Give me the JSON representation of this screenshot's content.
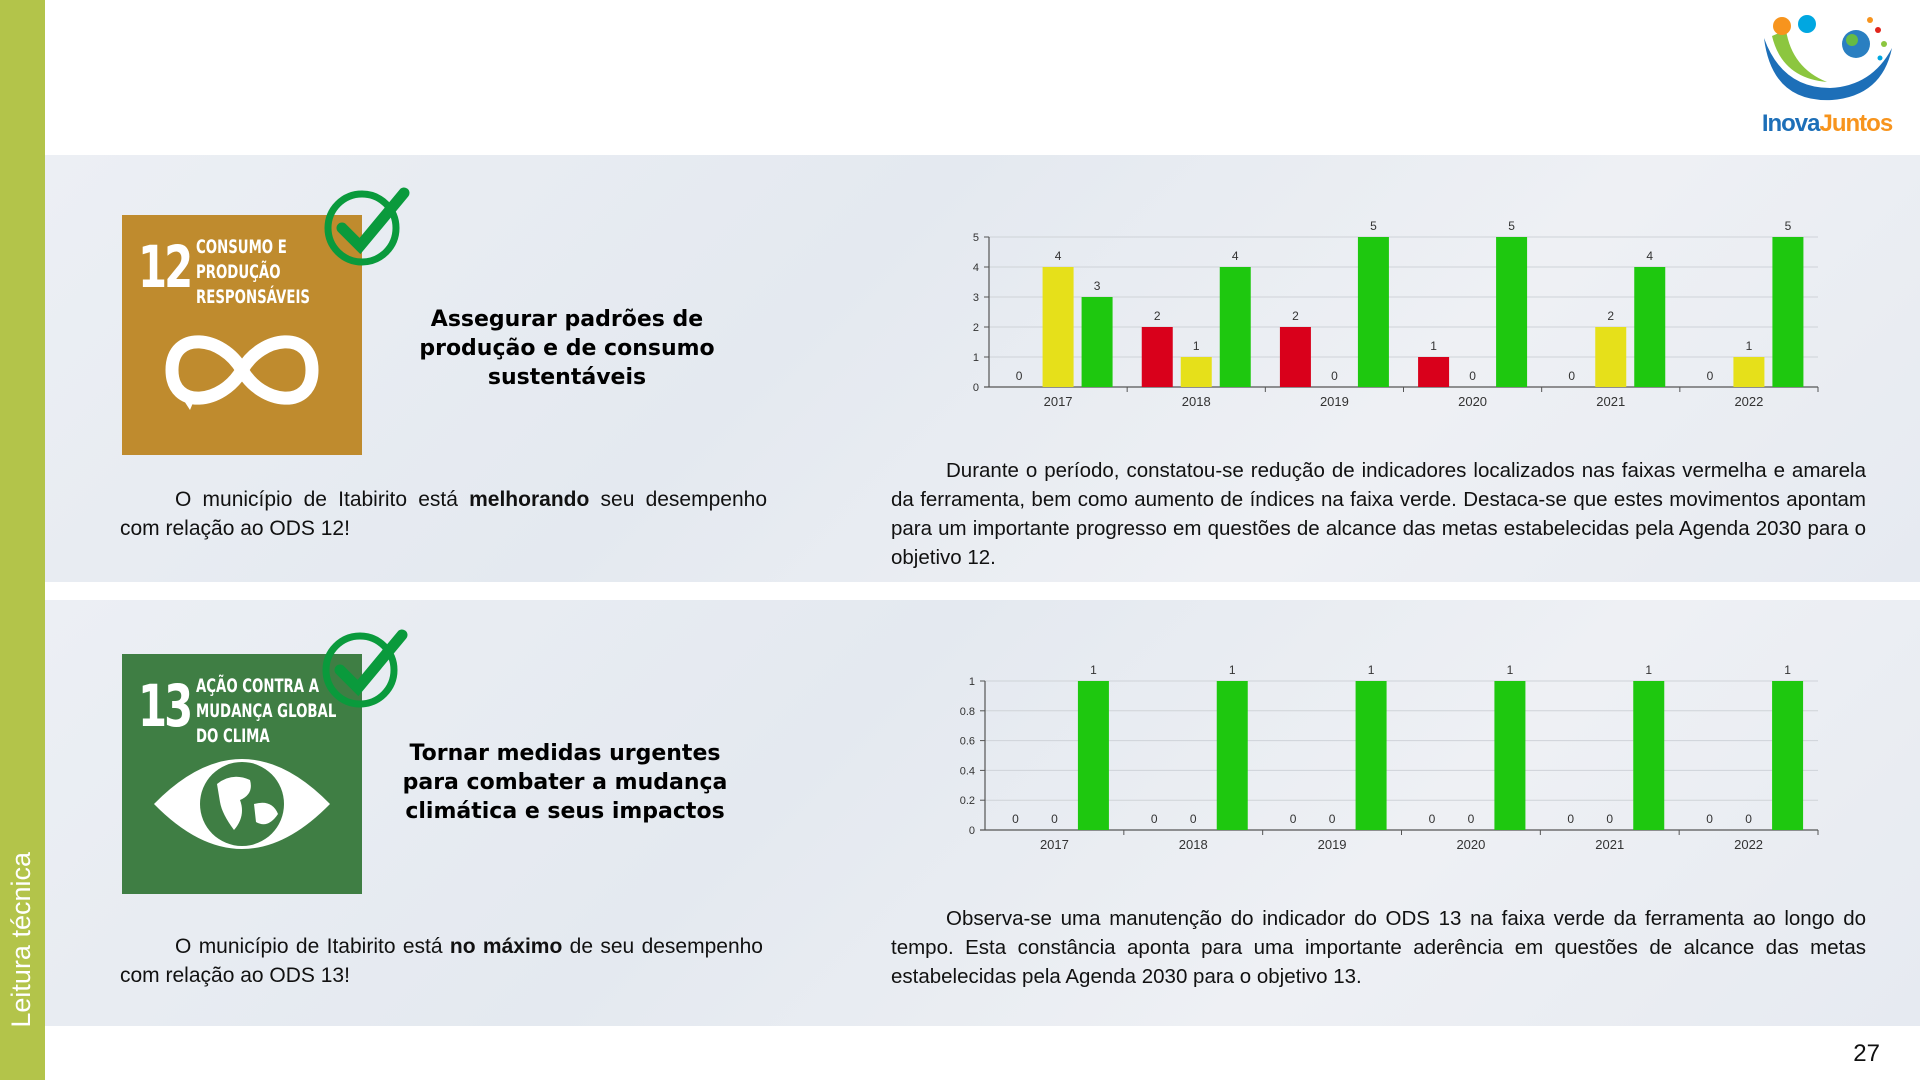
{
  "sidebar": "Leitura técnica",
  "logo": [
    "Inova",
    "Juntos"
  ],
  "page_number": "27",
  "sections": [
    {
      "icon": {
        "number": "12",
        "lines": [
          "CONSUMO E",
          "PRODUÇÃO",
          "RESPONSÁVEIS"
        ]
      },
      "heading": "Assegurar padrões de produção e de consumo sustentáveis",
      "status": [
        "O município de Itabirito está",
        "melhorando",
        "seu desempenho com relação ao ODS 12!"
      ],
      "analysis": "Durante o período, constatou-se redução de indicadores localizados nas faixas vermelha e amarela da ferramenta, bem como aumento de índices na faixa verde. Destaca-se que estes movimentos apontam para um importante progresso em questões de alcance das metas estabelecidas pela Agenda 2030 para o objetivo 12."
    },
    {
      "icon": {
        "number": "13",
        "lines": [
          "AÇÃO CONTRA A",
          "MUDANÇA GLOBAL",
          "DO CLIMA"
        ]
      },
      "heading": "Tornar medidas urgentes para combater a mudança climática e seus impactos",
      "status": [
        "O município de Itabirito está",
        "no máximo",
        "de seu desempenho com relação ao ODS 13!"
      ],
      "analysis": "Observa-se uma manutenção do indicador do ODS 13 na faixa verde da ferramenta ao longo do tempo. Esta constância aponta para uma importante aderência em questões de alcance das metas estabelecidas pela Agenda 2030 para o objetivo 13."
    }
  ],
  "chart_data": [
    {
      "type": "bar",
      "categories": [
        "2017",
        "2018",
        "2019",
        "2020",
        "2021",
        "2022"
      ],
      "series": [
        {
          "color": "#d9001b",
          "values": [
            0,
            2,
            2,
            1,
            0,
            0
          ]
        },
        {
          "color": "#e6e01a",
          "values": [
            4,
            1,
            0,
            0,
            2,
            1
          ]
        },
        {
          "color": "#1ec80f",
          "values": [
            3,
            4,
            5,
            5,
            4,
            5
          ]
        }
      ],
      "ylim": [
        0,
        5
      ],
      "yticks": [
        0,
        1,
        2,
        3,
        4,
        5
      ],
      "grid": true
    },
    {
      "type": "bar",
      "categories": [
        "2017",
        "2018",
        "2019",
        "2020",
        "2021",
        "2022"
      ],
      "series": [
        {
          "color": "#d9001b",
          "values": [
            0,
            0,
            0,
            0,
            0,
            0
          ]
        },
        {
          "color": "#e6e01a",
          "values": [
            0,
            0,
            0,
            0,
            0,
            0
          ]
        },
        {
          "color": "#1ec80f",
          "values": [
            1,
            1,
            1,
            1,
            1,
            1
          ]
        }
      ],
      "ylim": [
        0,
        1
      ],
      "yticks": [
        0,
        0.2,
        0.4,
        0.6,
        0.8,
        1
      ],
      "grid": true
    }
  ]
}
